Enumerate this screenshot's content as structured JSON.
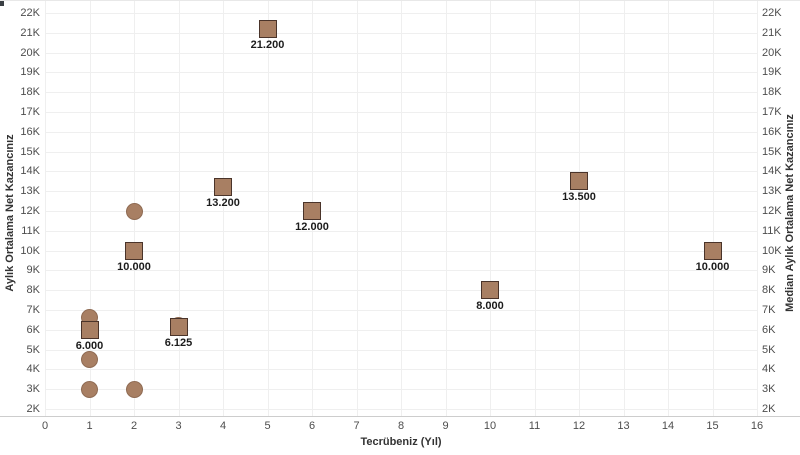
{
  "chart_data": {
    "type": "scatter",
    "title": "",
    "x_axis": {
      "label": "Tecrübeniz (Yıl)",
      "min": 0,
      "max": 16,
      "tick_step": 1
    },
    "y_axis_left": {
      "label": "Aylık Ortalama Net Kazancınız",
      "min": 2000,
      "max": 22000,
      "tick_step": 1000,
      "tick_suffix": "K"
    },
    "y_axis_right": {
      "label": "Median Aylık Ortalama Net Kazancınız",
      "min": 2000,
      "max": 22000,
      "tick_step": 1000,
      "tick_suffix": "K"
    },
    "grid": true,
    "legend": "none",
    "series": [
      {
        "name": "Aylık Ortalama Net Kazancınız",
        "marker": "circle",
        "points": [
          {
            "x": 1,
            "y": 6600
          },
          {
            "x": 1,
            "y": 4500
          },
          {
            "x": 1,
            "y": 3000
          },
          {
            "x": 2,
            "y": 12000
          },
          {
            "x": 2,
            "y": 3000
          },
          {
            "x": 3,
            "y": 6200
          }
        ]
      },
      {
        "name": "Median Aylık Ortalama Net Kazancınız",
        "marker": "square",
        "points": [
          {
            "x": 1,
            "y": 6000,
            "label": "6.000"
          },
          {
            "x": 2,
            "y": 10000,
            "label": "10.000"
          },
          {
            "x": 3,
            "y": 6125,
            "label": "6.125"
          },
          {
            "x": 4,
            "y": 13200,
            "label": "13.200"
          },
          {
            "x": 5,
            "y": 21200,
            "label": "21.200"
          },
          {
            "x": 6,
            "y": 12000,
            "label": "12.000"
          },
          {
            "x": 10,
            "y": 8000,
            "label": "8.000"
          },
          {
            "x": 12,
            "y": 13500,
            "label": "13.500"
          },
          {
            "x": 15,
            "y": 10000,
            "label": "10.000"
          }
        ]
      }
    ],
    "colors": {
      "marker_fill": "#a87f63",
      "square_border": "#4a342a",
      "circle_border": "#8f6b53",
      "grid": "#efefef",
      "axis_line": "#cdcdcd",
      "tick_label": "#4d4d4d",
      "data_label": "#1c1c1c",
      "axis_title": "#333333"
    }
  }
}
